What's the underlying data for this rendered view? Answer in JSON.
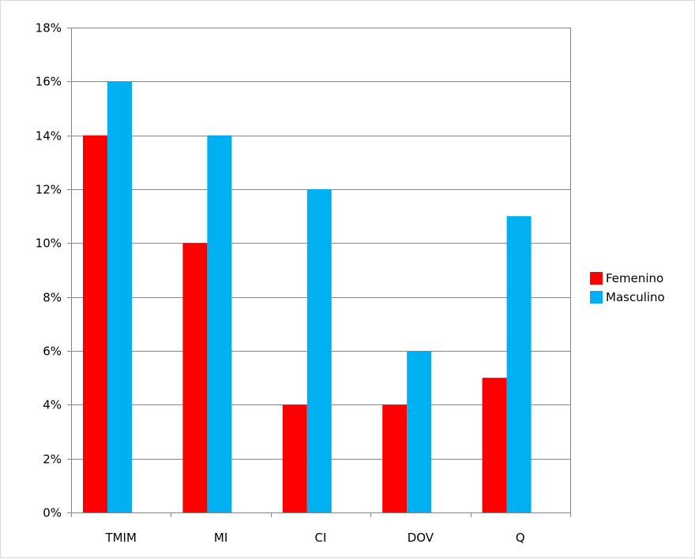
{
  "chart_data": {
    "type": "bar",
    "categories": [
      "TMIM",
      "MI",
      "CI",
      "DOV",
      "Q"
    ],
    "series": [
      {
        "name": "Femenino",
        "values": [
          14,
          10,
          4,
          4,
          5
        ],
        "color": "#ff0000"
      },
      {
        "name": "Masculino",
        "values": [
          16,
          14,
          12,
          6,
          11
        ],
        "color": "#00b0f0"
      }
    ],
    "y_unit": "%",
    "ylim": [
      0,
      18
    ],
    "y_ticks": [
      "0%",
      "2%",
      "4%",
      "6%",
      "8%",
      "10%",
      "12%",
      "14%",
      "16%",
      "18%"
    ],
    "grid": true,
    "legend_position": "right",
    "title": "",
    "xlabel": "",
    "ylabel": ""
  }
}
